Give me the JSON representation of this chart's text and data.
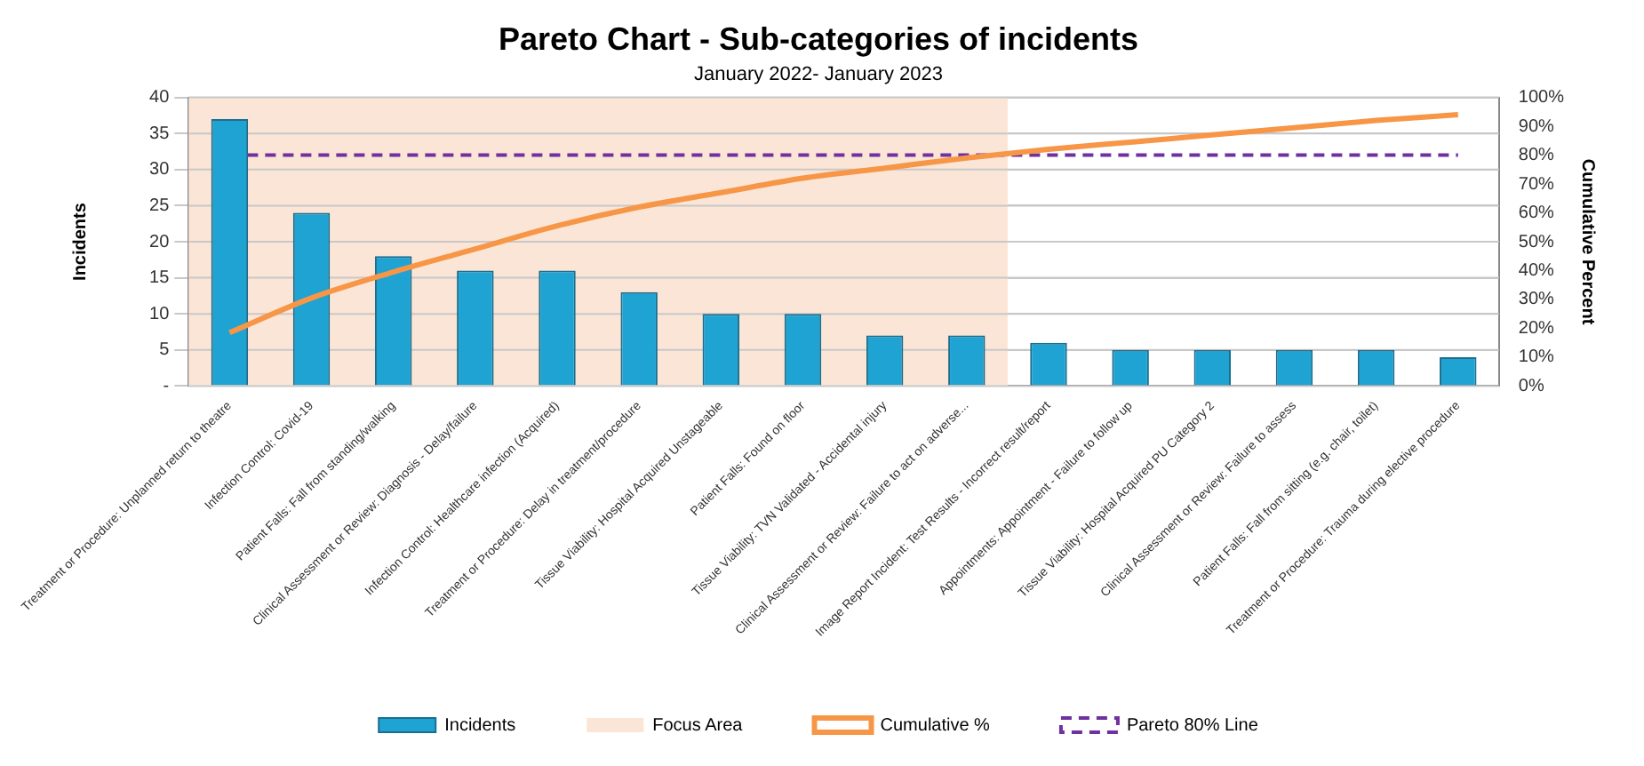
{
  "chart_data": {
    "type": "bar",
    "title": "Pareto Chart - Sub-categories of incidents",
    "subtitle": "January 2022- January 2023",
    "ylabel": "Incidents",
    "y2label": "Cumulative Percent",
    "categories": [
      "Treatment or Procedure: Unplanned return to theatre",
      "Infection Control: Covid-19",
      "Patient Falls: Fall from standing/walking",
      "Clinical Assessment or Review: Diagnosis - Delay/failure",
      "Infection Control: Healthcare infection (Acquired)",
      "Treatment or Procedure: Delay in treatment/procedure",
      "Tissue Viability: Hospital Acquired Unstageable",
      "Patient Falls: Found on floor",
      "Tissue Viability: TVN Validated - Accidental injury",
      "Clinical Assessment or Review: Failure to act on adverse...",
      "Image Report Incident: Test Results - Incorrect result/report",
      "Appointments: Appointment - Failure to follow up",
      "Tissue Viability: Hospital Acquired PU Category 2",
      "Clinical Assessment or Review: Failure to assess",
      "Patient Falls: Fall from sitting (e.g. chair, toilet)",
      "Treatment or Procedure: Trauma during elective procedure"
    ],
    "series": [
      {
        "name": "Incidents",
        "color": "#1fa3d3",
        "values": [
          37,
          24,
          18,
          16,
          16,
          13,
          10,
          10,
          7,
          7,
          6,
          5,
          5,
          5,
          5,
          4
        ]
      },
      {
        "name": "Cumulative %",
        "type": "line",
        "axis": "y2",
        "color": "#f79646",
        "values": [
          18.5,
          30.5,
          39.5,
          47.5,
          55.5,
          62,
          67,
          72,
          75.5,
          79,
          82,
          84.5,
          87,
          89.5,
          92,
          94
        ]
      }
    ],
    "ylim": [
      0,
      40
    ],
    "yticks": [
      {
        "value": 0,
        "label": "-"
      },
      5,
      10,
      15,
      20,
      25,
      30,
      35,
      40
    ],
    "y2lim": [
      0,
      100
    ],
    "y2ticks": [
      {
        "value": 0,
        "label": "0%"
      },
      {
        "value": 10,
        "label": "10%"
      },
      {
        "value": 20,
        "label": "20%"
      },
      {
        "value": 30,
        "label": "30%"
      },
      {
        "value": 40,
        "label": "40%"
      },
      {
        "value": 50,
        "label": "50%"
      },
      {
        "value": 60,
        "label": "60%"
      },
      {
        "value": 70,
        "label": "70%"
      },
      {
        "value": 80,
        "label": "80%"
      },
      {
        "value": 90,
        "label": "90%"
      },
      {
        "value": 100,
        "label": "100%"
      }
    ],
    "bands": [
      {
        "axis": "x",
        "from": "Treatment or Procedure: Unplanned return to theatre",
        "to": "Clinical Assessment or Review: Failure to act on adverse...",
        "label": "Focus Area",
        "color": "#fbe5d6"
      }
    ],
    "ref_lines": [
      {
        "axis": "y2",
        "value": 80,
        "label": "Pareto 80% Line",
        "color": "#7030a0",
        "line_style": "dashed"
      }
    ],
    "grid": "y",
    "legend": "bottom",
    "marker": "none"
  }
}
